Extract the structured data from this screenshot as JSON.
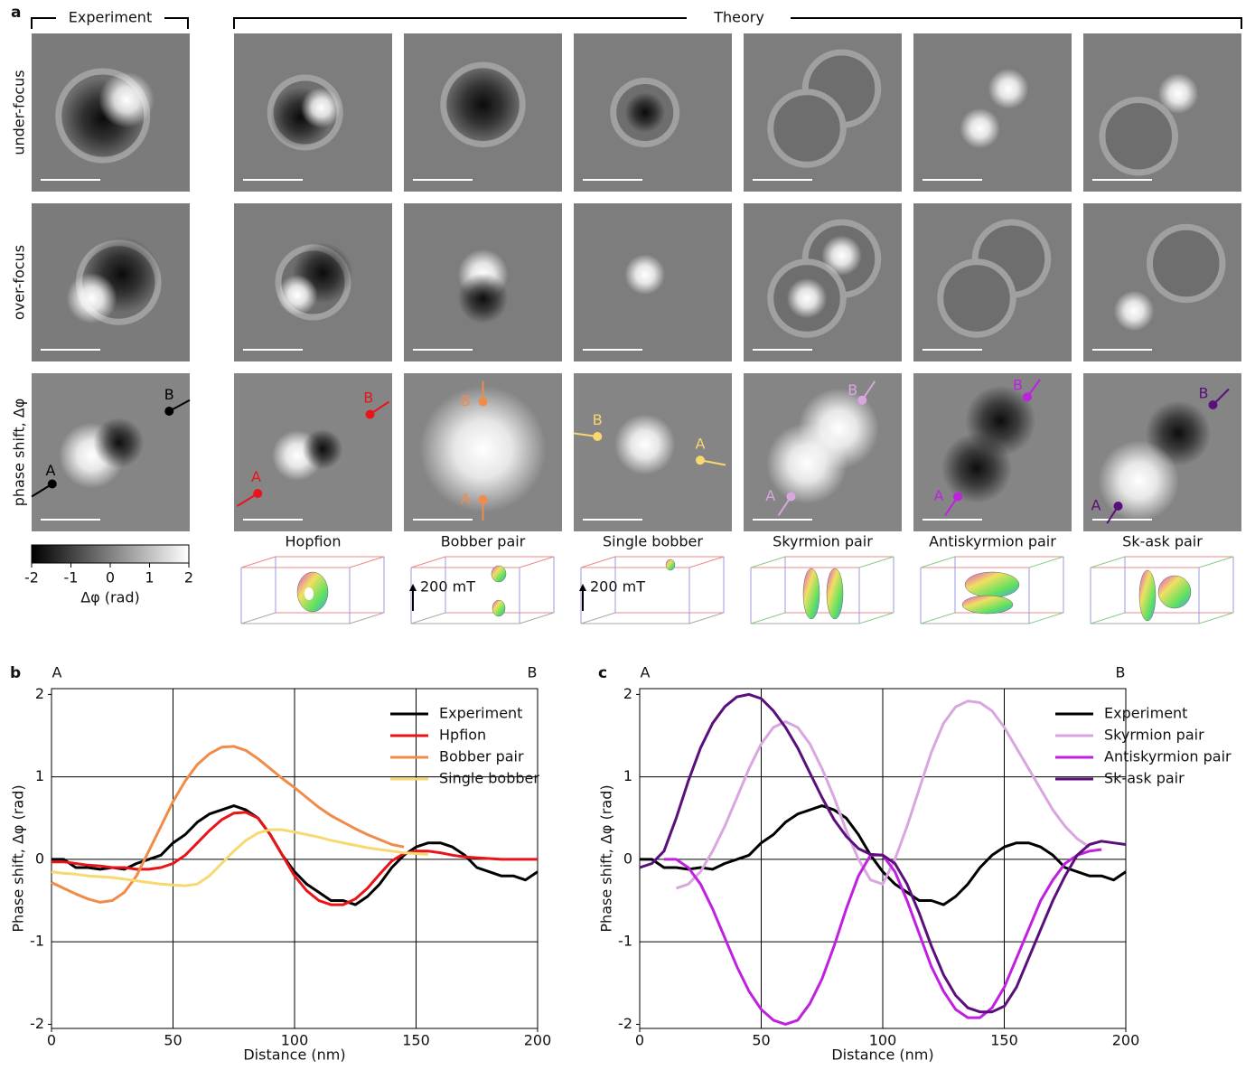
{
  "panel_a": {
    "label": "a",
    "experiment_header": "Experiment",
    "theory_header": "Theory",
    "rows": [
      "under-focus",
      "over-focus",
      "phase shift, Δφ"
    ],
    "columns": [
      "Hopfion",
      "Bobber pair",
      "Single bobber",
      "Skyrmion pair",
      "Antiskyrmion pair",
      "Sk-ask pair"
    ],
    "point_labels": [
      "A",
      "B"
    ],
    "field_label": "200 mT",
    "colorbar": {
      "label": "Δφ (rad)",
      "ticks": [
        -2,
        -1,
        0,
        1,
        2
      ]
    }
  },
  "chart_data": [
    {
      "type": "line",
      "panel_label": "b",
      "annotations": [
        "A",
        "B"
      ],
      "x_label": "Distance (nm)",
      "y_label": "Phase shift, Δφ (rad)",
      "xlim": [
        0,
        200
      ],
      "ylim": [
        -2.05,
        2.07
      ],
      "xticks": [
        0,
        50,
        100,
        150,
        200
      ],
      "yticks": [
        -2,
        -1,
        0,
        1,
        2
      ],
      "grid": true,
      "legend": "upper right",
      "x": [
        0,
        5,
        10,
        15,
        20,
        25,
        30,
        35,
        40,
        45,
        50,
        55,
        60,
        65,
        70,
        75,
        80,
        85,
        90,
        95,
        100,
        105,
        110,
        115,
        120,
        125,
        130,
        135,
        140,
        145,
        150,
        155,
        160,
        165,
        170,
        175,
        180,
        185,
        190,
        195,
        200
      ],
      "series": [
        {
          "name": "Experiment",
          "color": "#000000",
          "values": [
            0,
            0,
            -0.1,
            -0.1,
            -0.12,
            -0.1,
            -0.12,
            -0.05,
            0,
            0.05,
            0.2,
            0.3,
            0.45,
            0.55,
            0.6,
            0.65,
            0.6,
            0.5,
            0.3,
            0.05,
            -0.15,
            -0.3,
            -0.4,
            -0.5,
            -0.5,
            -0.55,
            -0.45,
            -0.3,
            -0.1,
            0.05,
            0.15,
            0.2,
            0.2,
            0.15,
            0.05,
            -0.1,
            -0.15,
            -0.2,
            -0.2,
            -0.25,
            -0.15
          ]
        },
        {
          "name": "Hpfion",
          "color": "#e8141a",
          "values": [
            -0.03,
            -0.03,
            -0.05,
            -0.07,
            -0.08,
            -0.1,
            -0.1,
            -0.12,
            -0.12,
            -0.1,
            -0.05,
            0.05,
            0.2,
            0.35,
            0.48,
            0.56,
            0.57,
            0.5,
            0.3,
            0.05,
            -0.2,
            -0.38,
            -0.5,
            -0.55,
            -0.55,
            -0.48,
            -0.35,
            -0.18,
            -0.02,
            0.07,
            0.1,
            0.1,
            0.08,
            0.05,
            0.03,
            0.02,
            0.01,
            0,
            0,
            0,
            0
          ]
        },
        {
          "name": "Bobber pair",
          "color": "#f08c4a",
          "values": [
            -0.28,
            -0.35,
            -0.42,
            -0.48,
            -0.52,
            -0.5,
            -0.4,
            -0.2,
            0.1,
            0.4,
            0.7,
            0.95,
            1.15,
            1.28,
            1.36,
            1.37,
            1.32,
            1.22,
            1.1,
            0.98,
            0.87,
            0.75,
            0.63,
            0.53,
            0.45,
            0.37,
            0.3,
            0.24,
            0.18,
            0.15,
            null,
            null,
            null,
            null,
            null,
            null,
            null,
            null,
            null,
            null,
            null
          ]
        },
        {
          "name": "Single bobber",
          "color": "#f8d870",
          "values": [
            -0.15,
            -0.17,
            -0.18,
            -0.2,
            -0.21,
            -0.22,
            -0.24,
            -0.26,
            -0.28,
            -0.3,
            -0.31,
            -0.32,
            -0.3,
            -0.2,
            -0.05,
            0.1,
            0.23,
            0.32,
            0.36,
            0.36,
            0.33,
            0.3,
            0.27,
            0.23,
            0.2,
            0.17,
            0.14,
            0.12,
            0.1,
            0.08,
            0.07,
            0.06,
            null,
            null,
            null,
            null,
            null,
            null,
            null,
            null,
            null
          ]
        }
      ]
    },
    {
      "type": "line",
      "panel_label": "c",
      "annotations": [
        "A",
        "B"
      ],
      "x_label": "Distance (nm)",
      "y_label": "Phase shift, Δφ (rad)",
      "xlim": [
        0,
        200
      ],
      "ylim": [
        -2.05,
        2.07
      ],
      "xticks": [
        0,
        50,
        100,
        150,
        200
      ],
      "yticks": [
        -2,
        -1,
        0,
        1,
        2
      ],
      "grid": true,
      "legend": "upper right",
      "x": [
        0,
        5,
        10,
        15,
        20,
        25,
        30,
        35,
        40,
        45,
        50,
        55,
        60,
        65,
        70,
        75,
        80,
        85,
        90,
        95,
        100,
        105,
        110,
        115,
        120,
        125,
        130,
        135,
        140,
        145,
        150,
        155,
        160,
        165,
        170,
        175,
        180,
        185,
        190,
        195,
        200
      ],
      "series": [
        {
          "name": "Experiment",
          "color": "#000000",
          "values": [
            0,
            0,
            -0.1,
            -0.1,
            -0.12,
            -0.1,
            -0.12,
            -0.05,
            0,
            0.05,
            0.2,
            0.3,
            0.45,
            0.55,
            0.6,
            0.65,
            0.6,
            0.5,
            0.3,
            0.05,
            -0.15,
            -0.3,
            -0.4,
            -0.5,
            -0.5,
            -0.55,
            -0.45,
            -0.3,
            -0.1,
            0.05,
            0.15,
            0.2,
            0.2,
            0.15,
            0.05,
            -0.1,
            -0.15,
            -0.2,
            -0.2,
            -0.25,
            -0.15
          ]
        },
        {
          "name": "Skyrmion pair",
          "color": "#d9a6e0",
          "values": [
            null,
            null,
            null,
            -0.35,
            -0.3,
            -0.15,
            0.1,
            0.4,
            0.75,
            1.1,
            1.4,
            1.6,
            1.67,
            1.6,
            1.4,
            1.1,
            0.75,
            0.35,
            0,
            -0.25,
            -0.3,
            0,
            0.4,
            0.85,
            1.3,
            1.65,
            1.85,
            1.92,
            1.9,
            1.8,
            1.6,
            1.35,
            1.1,
            0.85,
            0.6,
            0.4,
            0.25,
            0.15,
            null,
            null,
            null
          ]
        },
        {
          "name": "Antiskyrmion pair",
          "color": "#c020e0",
          "values": [
            null,
            null,
            0,
            0,
            -0.1,
            -0.3,
            -0.6,
            -0.95,
            -1.3,
            -1.6,
            -1.82,
            -1.95,
            -2.0,
            -1.95,
            -1.75,
            -1.45,
            -1.05,
            -0.6,
            -0.2,
            0.05,
            0.05,
            -0.15,
            -0.5,
            -0.9,
            -1.3,
            -1.6,
            -1.82,
            -1.92,
            -1.92,
            -1.8,
            -1.55,
            -1.2,
            -0.85,
            -0.5,
            -0.25,
            -0.05,
            0.05,
            0.1,
            0.12,
            null,
            null
          ]
        },
        {
          "name": "Sk-ask pair",
          "color": "#5a0f7a",
          "values": [
            -0.1,
            -0.05,
            0.1,
            0.5,
            0.95,
            1.35,
            1.65,
            1.85,
            1.97,
            2.0,
            1.95,
            1.8,
            1.6,
            1.35,
            1.05,
            0.75,
            0.48,
            0.28,
            0.13,
            0.06,
            0.05,
            -0.05,
            -0.3,
            -0.65,
            -1.05,
            -1.4,
            -1.65,
            -1.8,
            -1.85,
            -1.85,
            -1.78,
            -1.55,
            -1.2,
            -0.85,
            -0.5,
            -0.2,
            0.05,
            0.18,
            0.22,
            0.2,
            0.18
          ]
        }
      ]
    }
  ]
}
